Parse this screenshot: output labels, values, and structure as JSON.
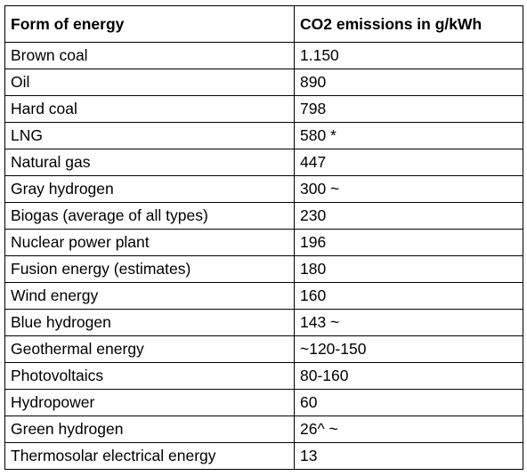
{
  "table": {
    "headers": [
      "Form of energy",
      "CO2 emissions in g/kWh"
    ],
    "rows": [
      [
        "Brown coal",
        "1.150"
      ],
      [
        "Oil",
        "890"
      ],
      [
        "Hard coal",
        "798"
      ],
      [
        "LNG",
        "580 *"
      ],
      [
        "Natural gas",
        "447"
      ],
      [
        "Gray hydrogen",
        "300 ~"
      ],
      [
        "Biogas (average of all types)",
        "230"
      ],
      [
        "Nuclear power plant",
        "196"
      ],
      [
        "Fusion energy (estimates)",
        "180"
      ],
      [
        "Wind energy",
        "160"
      ],
      [
        "Blue hydrogen",
        "143 ~"
      ],
      [
        "Geothermal energy",
        "~120-150"
      ],
      [
        "Photovoltaics",
        "80-160"
      ],
      [
        "Hydropower",
        "60"
      ],
      [
        "Green hydrogen",
        "26^ ~"
      ],
      [
        "Thermosolar electrical energy",
        "13"
      ]
    ]
  }
}
